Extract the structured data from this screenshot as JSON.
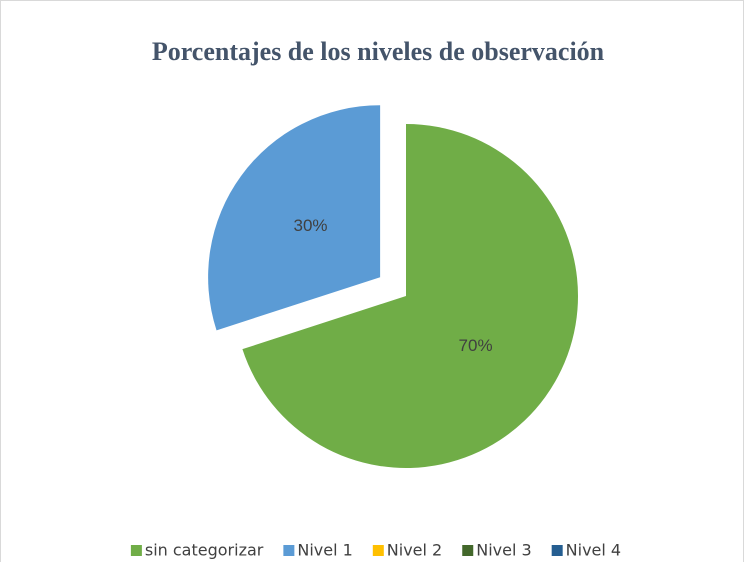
{
  "chart_data": {
    "type": "pie",
    "title": "Porcentajes de los niveles de observación",
    "categories": [
      "sin categorizar",
      "Nivel 1",
      "Nivel 2",
      "Nivel 3",
      "Nivel 4"
    ],
    "values": [
      70,
      30,
      0,
      0,
      0
    ],
    "value_labels": [
      "70%",
      "30%",
      null,
      null,
      null
    ],
    "colors": [
      "#70ad47",
      "#5b9bd5",
      "#ffc000",
      "#43682b",
      "#255e91"
    ],
    "exploded": [
      false,
      true,
      false,
      false,
      false
    ],
    "legend": "bottom"
  }
}
